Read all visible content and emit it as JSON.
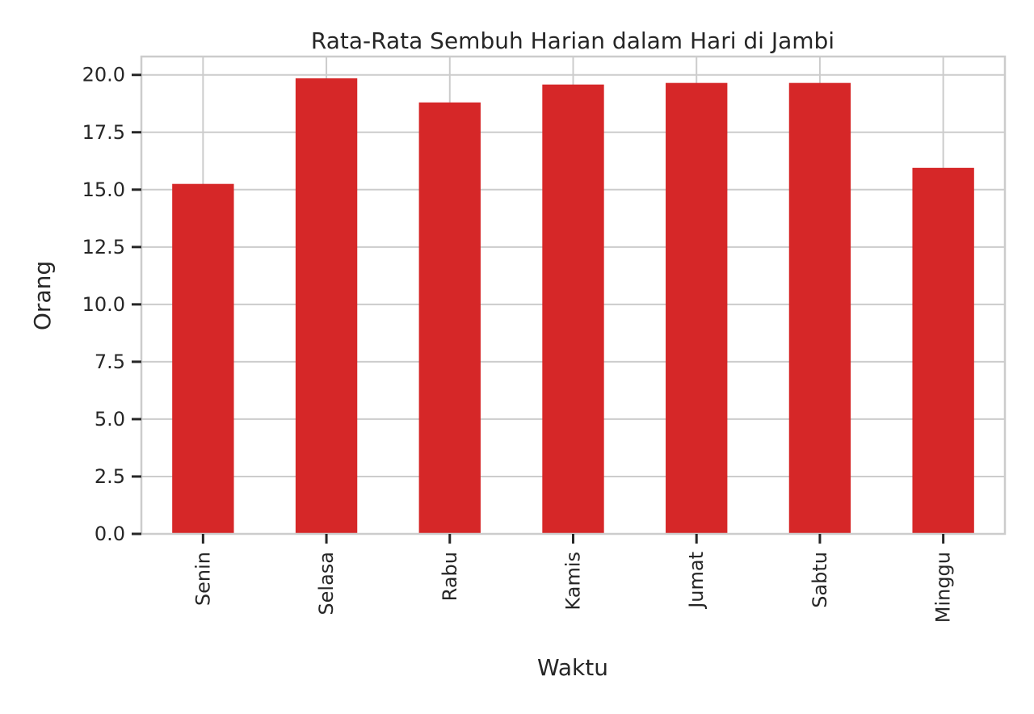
{
  "chart_data": {
    "type": "bar",
    "title": "Rata-Rata Sembuh Harian dalam Hari di Jambi",
    "xlabel": "Waktu",
    "ylabel": "Orang",
    "categories": [
      "Senin",
      "Selasa",
      "Rabu",
      "Kamis",
      "Jumat",
      "Sabtu",
      "Minggu"
    ],
    "values": [
      15.25,
      19.85,
      18.8,
      19.58,
      19.65,
      19.65,
      15.95
    ],
    "ylim": [
      0,
      20.8
    ],
    "yticks": [
      0.0,
      2.5,
      5.0,
      7.5,
      10.0,
      12.5,
      15.0,
      17.5,
      20.0
    ],
    "ytick_labels": [
      "0.0",
      "2.5",
      "5.0",
      "7.5",
      "10.0",
      "12.5",
      "15.0",
      "17.5",
      "20.0"
    ],
    "grid": true,
    "bar_color": "#d62728",
    "grid_color": "#cccccc",
    "text_color": "#262626"
  }
}
